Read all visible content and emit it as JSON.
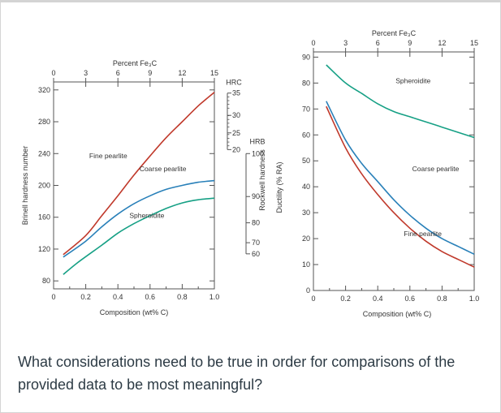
{
  "question": "What considerations need to be true in order for comparisons of the provided data to be most meaningful?",
  "chart_data": [
    {
      "type": "line",
      "title": "",
      "xlabel": "Composition (wt% C)",
      "ylabel": "Brinell hardness number",
      "top_axis_label": "Percent Fe₃C",
      "xlim": [
        0,
        1.0
      ],
      "ylim": [
        70,
        330
      ],
      "x_ticks": [
        0,
        0.2,
        0.4,
        0.6,
        0.8,
        1.0
      ],
      "x_tick_labels": [
        "0",
        "0.2",
        "0.4",
        "0.6",
        "0.8",
        "1.0"
      ],
      "y_ticks": [
        80,
        120,
        160,
        200,
        240,
        280,
        320
      ],
      "y_tick_labels": [
        "80",
        "120",
        "160",
        "200",
        "240",
        "280",
        "320"
      ],
      "top_ticks": [
        0,
        3,
        6,
        9,
        12,
        15
      ],
      "top_tick_labels": [
        "0",
        "3",
        "6",
        "9",
        "12",
        "15"
      ],
      "secondary_axes": [
        {
          "label": "HRC",
          "ticks": [
            {
              "value": 35,
              "label": "35"
            },
            {
              "value": 30,
              "label": "30"
            },
            {
              "value": 25,
              "label": "25"
            },
            {
              "value": 20,
              "label": "20"
            }
          ]
        },
        {
          "label": "HRB",
          "ticks": [
            {
              "value": 100,
              "label": "100"
            },
            {
              "value": 90,
              "label": "90"
            },
            {
              "value": 80,
              "label": "80"
            },
            {
              "value": 70,
              "label": "70"
            },
            {
              "value": 60,
              "label": "60"
            }
          ]
        }
      ],
      "right_axis_label": "Rockwell hardness",
      "series": [
        {
          "name": "Fine pearlite",
          "color": "#c0392b",
          "x": [
            0.06,
            0.2,
            0.3,
            0.4,
            0.5,
            0.6,
            0.7,
            0.8,
            0.9,
            1.0
          ],
          "y": [
            113,
            137,
            162,
            187,
            213,
            237,
            260,
            280,
            300,
            317
          ]
        },
        {
          "name": "Coarse pearlite",
          "color": "#2980b9",
          "x": [
            0.06,
            0.2,
            0.3,
            0.4,
            0.5,
            0.6,
            0.7,
            0.8,
            0.9,
            1.0
          ],
          "y": [
            110,
            130,
            148,
            164,
            177,
            187,
            195,
            200,
            204,
            206
          ]
        },
        {
          "name": "Spheroidite",
          "color": "#16a085",
          "x": [
            0.06,
            0.15,
            0.3,
            0.4,
            0.5,
            0.6,
            0.7,
            0.8,
            0.9,
            1.0
          ],
          "y": [
            88,
            103,
            125,
            140,
            152,
            162,
            171,
            178,
            182,
            184
          ]
        }
      ]
    },
    {
      "type": "line",
      "title": "",
      "xlabel": "Composition (wt% C)",
      "ylabel": "Ductility (% RA)",
      "top_axis_label": "Percent Fe₃C",
      "xlim": [
        0,
        1.0
      ],
      "ylim": [
        0,
        92
      ],
      "x_ticks": [
        0,
        0.2,
        0.4,
        0.6,
        0.8,
        1.0
      ],
      "x_tick_labels": [
        "0",
        "0.2",
        "0.4",
        "0.6",
        "0.8",
        "1.0"
      ],
      "y_ticks": [
        0,
        10,
        20,
        30,
        40,
        50,
        60,
        70,
        80,
        90
      ],
      "y_tick_labels": [
        "0",
        "10",
        "20",
        "30",
        "40",
        "50",
        "60",
        "70",
        "80",
        "90"
      ],
      "top_ticks": [
        0,
        3,
        6,
        9,
        12,
        15
      ],
      "top_tick_labels": [
        "0",
        "3",
        "6",
        "9",
        "12",
        "15"
      ],
      "series": [
        {
          "name": "Spheroidite",
          "color": "#16a085",
          "x": [
            0.08,
            0.2,
            0.3,
            0.4,
            0.5,
            0.6,
            0.7,
            0.8,
            0.9,
            1.0
          ],
          "y": [
            87,
            80,
            76,
            72,
            69,
            67,
            65,
            63,
            61,
            59
          ]
        },
        {
          "name": "Coarse pearlite",
          "color": "#2980b9",
          "x": [
            0.08,
            0.2,
            0.3,
            0.4,
            0.5,
            0.6,
            0.7,
            0.8,
            0.9,
            1.0
          ],
          "y": [
            73,
            58,
            49,
            42,
            35,
            29,
            24,
            20,
            17,
            14
          ]
        },
        {
          "name": "Fine pearlite",
          "color": "#c0392b",
          "x": [
            0.08,
            0.2,
            0.3,
            0.4,
            0.5,
            0.6,
            0.7,
            0.8,
            0.9,
            1.0
          ],
          "y": [
            71,
            55,
            45,
            37,
            30,
            24,
            19,
            15,
            12,
            9
          ]
        }
      ]
    }
  ]
}
